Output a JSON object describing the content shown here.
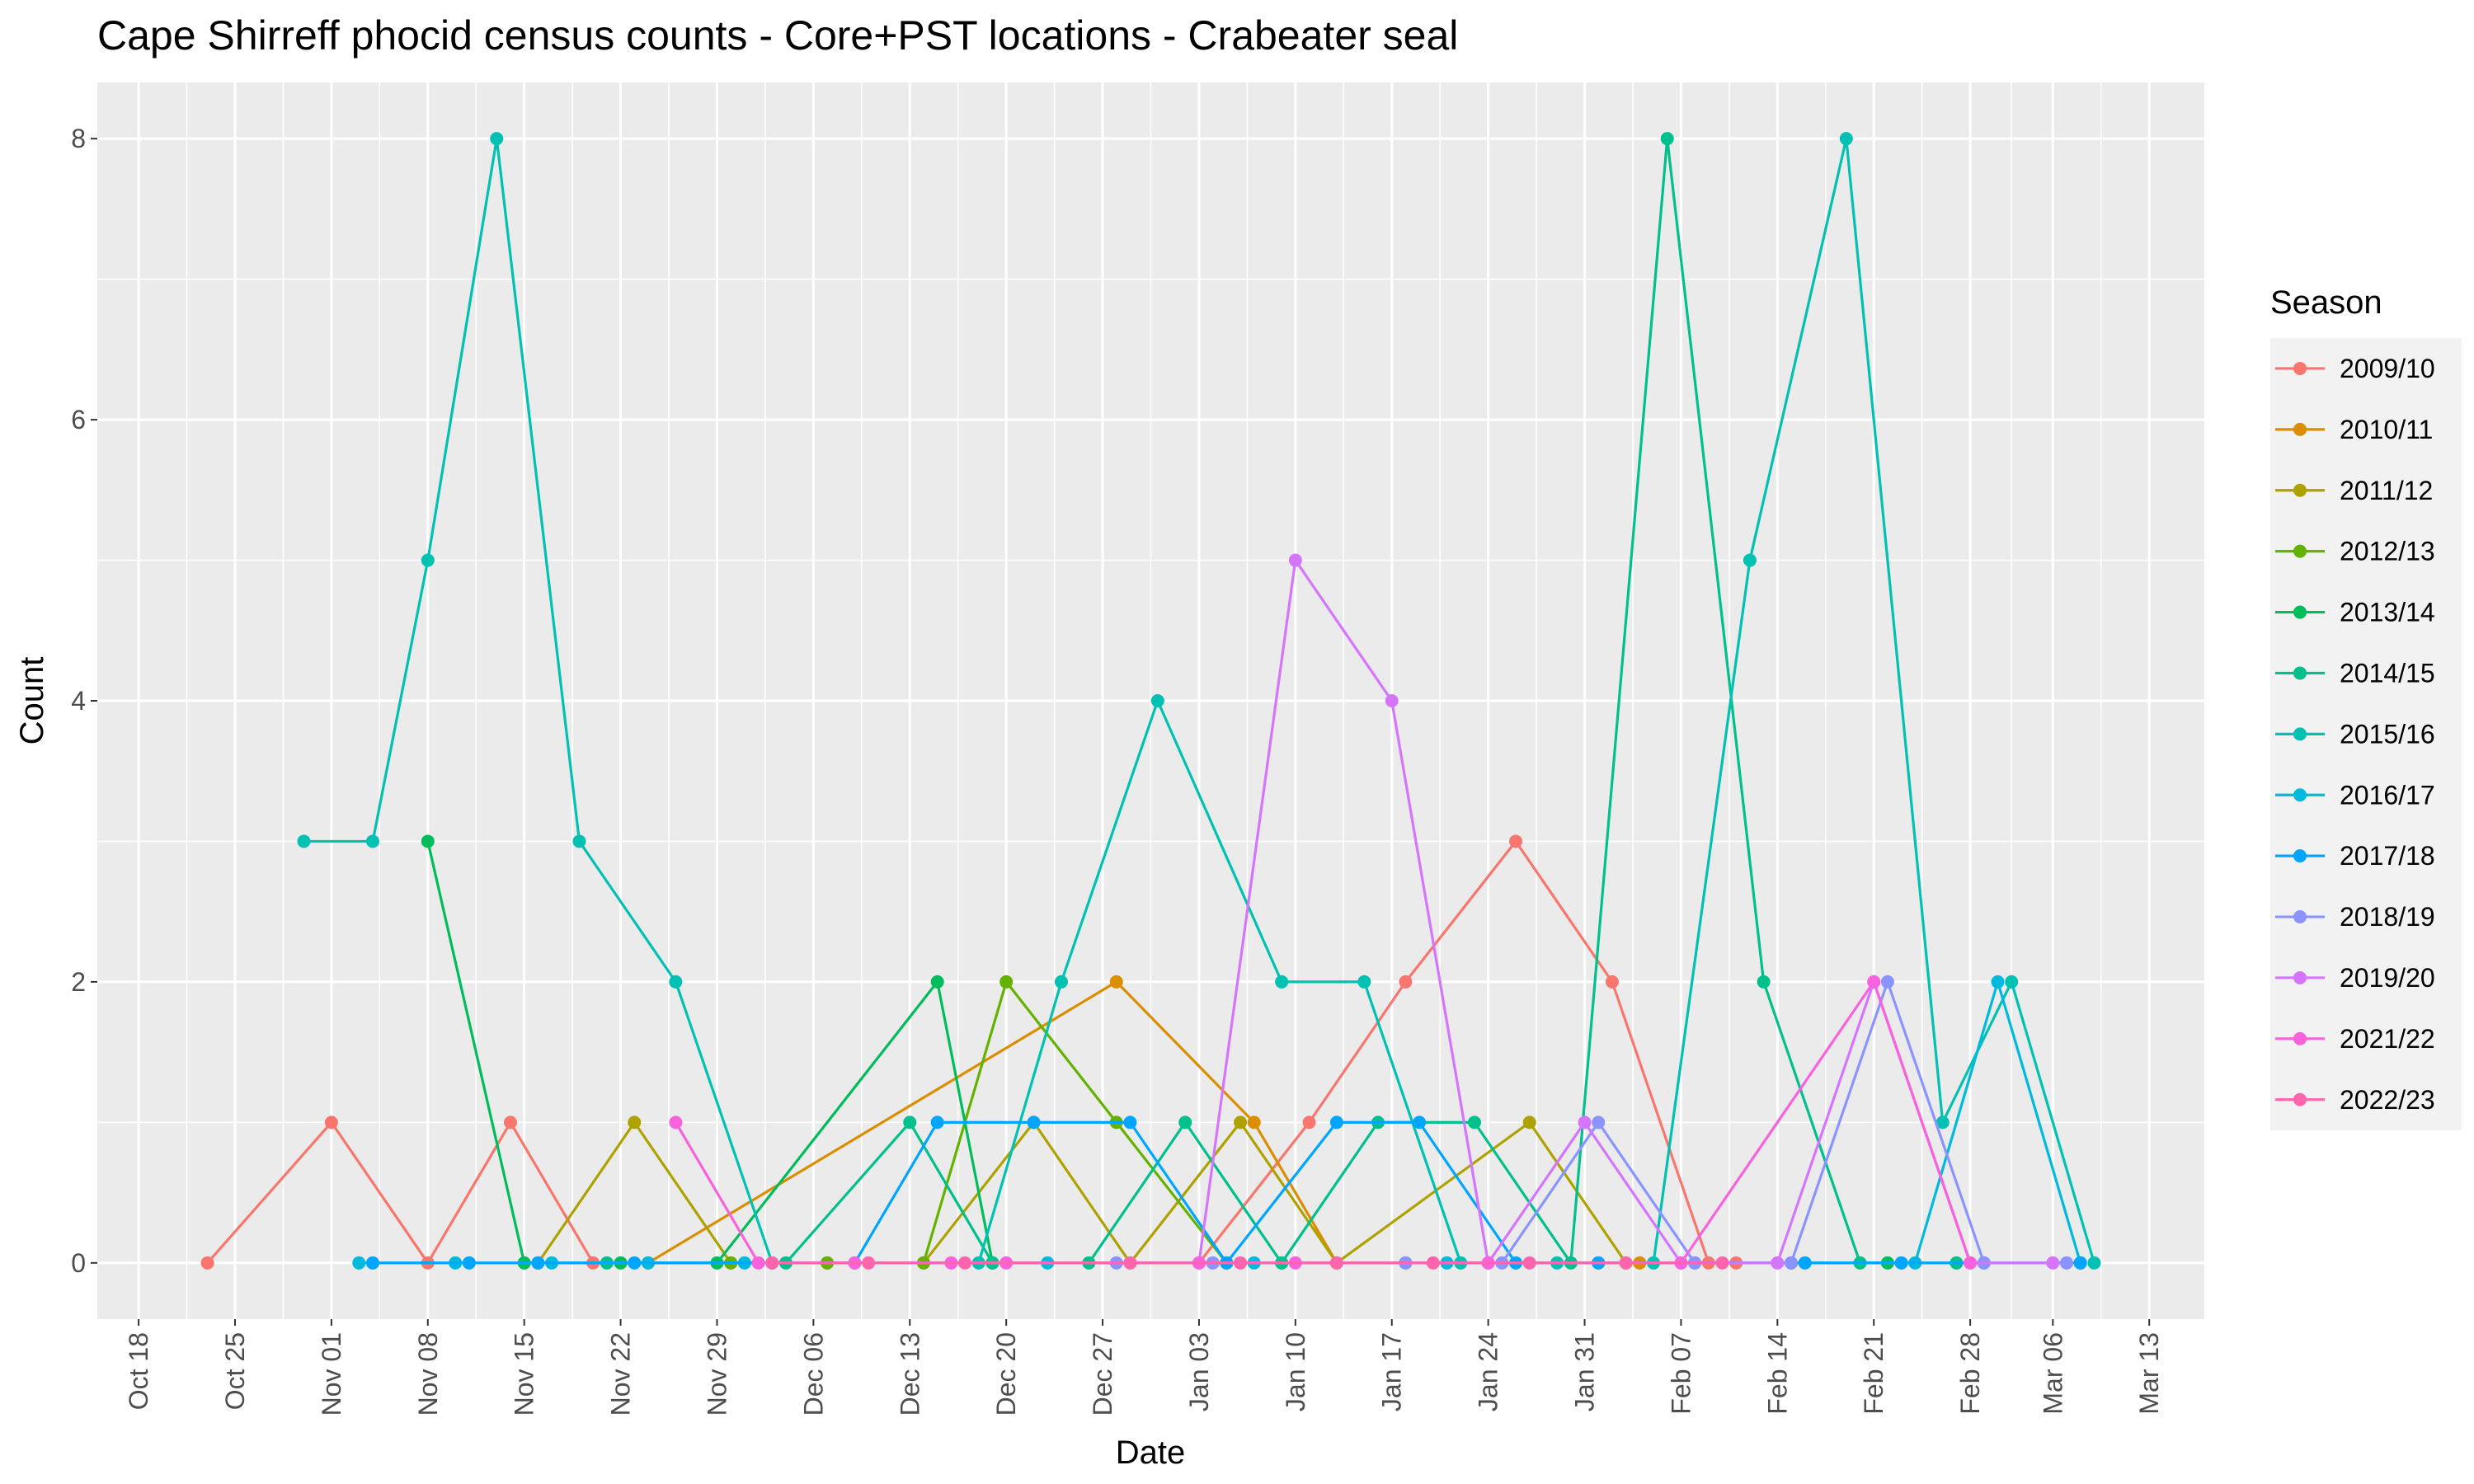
{
  "chart_data": {
    "type": "line",
    "title": "Cape Shirreff phocid census counts - Core+PST locations - Crabeater seal",
    "xlabel": "Date",
    "ylabel": "Count",
    "x_axis": "date (month-day, season from October to March; year shown as 2000/2001 for layout)",
    "xlim": [
      "2000-10-15",
      "2001-03-17"
    ],
    "ylim": [
      -0.4,
      8.4
    ],
    "y_ticks": [
      0,
      2,
      4,
      6,
      8
    ],
    "x_ticks": [
      {
        "date": "2000-10-18",
        "label": "Oct 18"
      },
      {
        "date": "2000-10-25",
        "label": "Oct 25"
      },
      {
        "date": "2000-11-01",
        "label": "Nov 01"
      },
      {
        "date": "2000-11-08",
        "label": "Nov 08"
      },
      {
        "date": "2000-11-15",
        "label": "Nov 15"
      },
      {
        "date": "2000-11-22",
        "label": "Nov 22"
      },
      {
        "date": "2000-11-29",
        "label": "Nov 29"
      },
      {
        "date": "2000-12-06",
        "label": "Dec 06"
      },
      {
        "date": "2000-12-13",
        "label": "Dec 13"
      },
      {
        "date": "2000-12-20",
        "label": "Dec 20"
      },
      {
        "date": "2000-12-27",
        "label": "Dec 27"
      },
      {
        "date": "2001-01-03",
        "label": "Jan 03"
      },
      {
        "date": "2001-01-10",
        "label": "Jan 10"
      },
      {
        "date": "2001-01-17",
        "label": "Jan 17"
      },
      {
        "date": "2001-01-24",
        "label": "Jan 24"
      },
      {
        "date": "2001-01-31",
        "label": "Jan 31"
      },
      {
        "date": "2001-02-07",
        "label": "Feb 07"
      },
      {
        "date": "2001-02-14",
        "label": "Feb 14"
      },
      {
        "date": "2001-02-21",
        "label": "Feb 21"
      },
      {
        "date": "2001-02-28",
        "label": "Feb 28"
      },
      {
        "date": "2001-03-06",
        "label": "Mar 06"
      },
      {
        "date": "2001-03-13",
        "label": "Mar 13"
      }
    ],
    "grid": true,
    "legend": {
      "title": "Season",
      "placement": "right"
    },
    "series": [
      {
        "name": "2009/10",
        "color": "#F8766D",
        "points": [
          {
            "x": "2000-10-23",
            "y": 0
          },
          {
            "x": "2000-11-01",
            "y": 1
          },
          {
            "x": "2000-11-08",
            "y": 0
          },
          {
            "x": "2000-11-14",
            "y": 1
          },
          {
            "x": "2000-11-20",
            "y": 0
          },
          {
            "x": "2001-01-03",
            "y": 0
          },
          {
            "x": "2001-01-11",
            "y": 1
          },
          {
            "x": "2001-01-18",
            "y": 2
          },
          {
            "x": "2001-01-26",
            "y": 3
          },
          {
            "x": "2001-02-02",
            "y": 2
          },
          {
            "x": "2001-02-09",
            "y": 0
          },
          {
            "x": "2001-02-11",
            "y": 0
          }
        ]
      },
      {
        "name": "2010/11",
        "color": "#DB8E00",
        "points": [
          {
            "x": "2000-11-24",
            "y": 0
          },
          {
            "x": "2000-12-28",
            "y": 2
          },
          {
            "x": "2001-01-07",
            "y": 1
          },
          {
            "x": "2001-01-13",
            "y": 0
          },
          {
            "x": "2001-02-04",
            "y": 0
          }
        ]
      },
      {
        "name": "2011/12",
        "color": "#AEA200",
        "points": [
          {
            "x": "2000-11-16",
            "y": 0
          },
          {
            "x": "2000-11-23",
            "y": 1
          },
          {
            "x": "2000-11-30",
            "y": 0
          },
          {
            "x": "2000-12-07",
            "y": 0
          },
          {
            "x": "2000-12-14",
            "y": 0
          },
          {
            "x": "2000-12-22",
            "y": 1
          },
          {
            "x": "2000-12-29",
            "y": 0
          },
          {
            "x": "2001-01-06",
            "y": 1
          },
          {
            "x": "2001-01-13",
            "y": 0
          },
          {
            "x": "2001-01-27",
            "y": 1
          },
          {
            "x": "2001-02-03",
            "y": 0
          }
        ]
      },
      {
        "name": "2012/13",
        "color": "#64B200",
        "points": [
          {
            "x": "2000-11-30",
            "y": 0
          },
          {
            "x": "2000-12-07",
            "y": 0
          },
          {
            "x": "2000-12-14",
            "y": 0
          },
          {
            "x": "2000-12-20",
            "y": 2
          },
          {
            "x": "2000-12-28",
            "y": 1
          },
          {
            "x": "2001-01-05",
            "y": 0
          }
        ]
      },
      {
        "name": "2013/14",
        "color": "#00BD5C",
        "points": [
          {
            "x": "2000-11-08",
            "y": 3
          },
          {
            "x": "2000-11-15",
            "y": 0
          },
          {
            "x": "2000-11-22",
            "y": 0
          },
          {
            "x": "2000-11-29",
            "y": 0
          },
          {
            "x": "2000-12-15",
            "y": 2
          },
          {
            "x": "2000-12-19",
            "y": 0
          },
          {
            "x": "2001-01-09",
            "y": 0
          },
          {
            "x": "2001-01-18",
            "y": 0
          },
          {
            "x": "2001-02-01",
            "y": 0
          },
          {
            "x": "2001-02-22",
            "y": 0
          }
        ]
      },
      {
        "name": "2014/15",
        "color": "#00C08B",
        "points": [
          {
            "x": "2000-11-21",
            "y": 0
          },
          {
            "x": "2000-12-04",
            "y": 0
          },
          {
            "x": "2000-12-13",
            "y": 1
          },
          {
            "x": "2000-12-19",
            "y": 0
          },
          {
            "x": "2000-12-26",
            "y": 0
          },
          {
            "x": "2001-01-02",
            "y": 1
          },
          {
            "x": "2001-01-09",
            "y": 0
          },
          {
            "x": "2001-01-16",
            "y": 1
          },
          {
            "x": "2001-01-23",
            "y": 1
          },
          {
            "x": "2001-01-30",
            "y": 0
          },
          {
            "x": "2001-02-06",
            "y": 8
          },
          {
            "x": "2001-02-13",
            "y": 2
          },
          {
            "x": "2001-02-20",
            "y": 0
          },
          {
            "x": "2001-02-27",
            "y": 0
          }
        ]
      },
      {
        "name": "2015/16",
        "color": "#00C1B2",
        "points": [
          {
            "x": "2000-10-30",
            "y": 3
          },
          {
            "x": "2000-11-04",
            "y": 3
          },
          {
            "x": "2000-11-08",
            "y": 5
          },
          {
            "x": "2000-11-13",
            "y": 8
          },
          {
            "x": "2000-11-19",
            "y": 3
          },
          {
            "x": "2000-11-26",
            "y": 2
          },
          {
            "x": "2000-12-03",
            "y": 0
          },
          {
            "x": "2000-12-18",
            "y": 0
          },
          {
            "x": "2000-12-24",
            "y": 2
          },
          {
            "x": "2000-12-31",
            "y": 4
          },
          {
            "x": "2001-01-09",
            "y": 2
          },
          {
            "x": "2001-01-15",
            "y": 2
          },
          {
            "x": "2001-01-22",
            "y": 0
          },
          {
            "x": "2001-01-29",
            "y": 0
          },
          {
            "x": "2001-02-05",
            "y": 0
          },
          {
            "x": "2001-02-12",
            "y": 5
          },
          {
            "x": "2001-02-19",
            "y": 8
          },
          {
            "x": "2001-02-26",
            "y": 1
          },
          {
            "x": "2001-03-03",
            "y": 2
          },
          {
            "x": "2001-03-09",
            "y": 0
          }
        ]
      },
      {
        "name": "2016/17",
        "color": "#00BADE",
        "points": [
          {
            "x": "2000-11-03",
            "y": 0
          },
          {
            "x": "2000-11-10",
            "y": 0
          },
          {
            "x": "2000-11-17",
            "y": 0
          },
          {
            "x": "2000-11-24",
            "y": 0
          },
          {
            "x": "2000-12-01",
            "y": 0
          },
          {
            "x": "2000-12-23",
            "y": 0
          },
          {
            "x": "2001-01-07",
            "y": 0
          },
          {
            "x": "2001-01-21",
            "y": 0
          },
          {
            "x": "2001-02-15",
            "y": 0
          },
          {
            "x": "2001-02-24",
            "y": 0
          },
          {
            "x": "2001-03-02",
            "y": 2
          },
          {
            "x": "2001-03-08",
            "y": 0
          }
        ]
      },
      {
        "name": "2017/18",
        "color": "#00A5FF",
        "points": [
          {
            "x": "2000-11-04",
            "y": 0
          },
          {
            "x": "2000-11-11",
            "y": 0
          },
          {
            "x": "2000-11-16",
            "y": 0
          },
          {
            "x": "2000-11-23",
            "y": 0
          },
          {
            "x": "2000-12-09",
            "y": 0
          },
          {
            "x": "2000-12-15",
            "y": 1
          },
          {
            "x": "2000-12-22",
            "y": 1
          },
          {
            "x": "2000-12-29",
            "y": 1
          },
          {
            "x": "2001-01-05",
            "y": 0
          },
          {
            "x": "2001-01-13",
            "y": 1
          },
          {
            "x": "2001-01-19",
            "y": 1
          },
          {
            "x": "2001-01-26",
            "y": 0
          },
          {
            "x": "2001-02-01",
            "y": 0
          },
          {
            "x": "2001-02-08",
            "y": 0
          },
          {
            "x": "2001-02-16",
            "y": 0
          },
          {
            "x": "2001-02-23",
            "y": 0
          },
          {
            "x": "2001-03-01",
            "y": 0
          },
          {
            "x": "2001-03-08",
            "y": 0
          }
        ]
      },
      {
        "name": "2018/19",
        "color": "#8B93FF",
        "points": [
          {
            "x": "2000-12-28",
            "y": 0
          },
          {
            "x": "2001-01-04",
            "y": 0
          },
          {
            "x": "2001-01-18",
            "y": 0
          },
          {
            "x": "2001-01-25",
            "y": 0
          },
          {
            "x": "2001-02-01",
            "y": 1
          },
          {
            "x": "2001-02-08",
            "y": 0
          },
          {
            "x": "2001-02-15",
            "y": 0
          },
          {
            "x": "2001-02-22",
            "y": 2
          },
          {
            "x": "2001-03-01",
            "y": 0
          },
          {
            "x": "2001-03-07",
            "y": 0
          }
        ]
      },
      {
        "name": "2019/20",
        "color": "#D575FE",
        "points": [
          {
            "x": "2001-01-03",
            "y": 0
          },
          {
            "x": "2001-01-10",
            "y": 5
          },
          {
            "x": "2001-01-17",
            "y": 4
          },
          {
            "x": "2001-01-24",
            "y": 0
          },
          {
            "x": "2001-01-31",
            "y": 1
          },
          {
            "x": "2001-02-07",
            "y": 0
          },
          {
            "x": "2001-02-14",
            "y": 0
          },
          {
            "x": "2001-02-21",
            "y": 2
          },
          {
            "x": "2001-02-28",
            "y": 0
          },
          {
            "x": "2001-03-06",
            "y": 0
          }
        ]
      },
      {
        "name": "2021/22",
        "color": "#F962DD",
        "points": [
          {
            "x": "2000-11-26",
            "y": 1
          },
          {
            "x": "2000-12-02",
            "y": 0
          },
          {
            "x": "2000-12-09",
            "y": 0
          },
          {
            "x": "2000-12-16",
            "y": 0
          },
          {
            "x": "2000-12-20",
            "y": 0
          },
          {
            "x": "2001-01-03",
            "y": 0
          },
          {
            "x": "2001-01-10",
            "y": 0
          },
          {
            "x": "2001-01-24",
            "y": 0
          },
          {
            "x": "2001-02-07",
            "y": 0
          },
          {
            "x": "2001-02-21",
            "y": 2
          },
          {
            "x": "2001-02-28",
            "y": 0
          }
        ]
      },
      {
        "name": "2022/23",
        "color": "#FF65AC",
        "points": [
          {
            "x": "2000-12-03",
            "y": 0
          },
          {
            "x": "2000-12-10",
            "y": 0
          },
          {
            "x": "2000-12-17",
            "y": 0
          },
          {
            "x": "2000-12-29",
            "y": 0
          },
          {
            "x": "2001-01-06",
            "y": 0
          },
          {
            "x": "2001-01-13",
            "y": 0
          },
          {
            "x": "2001-01-20",
            "y": 0
          },
          {
            "x": "2001-01-27",
            "y": 0
          },
          {
            "x": "2001-02-03",
            "y": 0
          },
          {
            "x": "2001-02-10",
            "y": 0
          }
        ]
      }
    ]
  }
}
